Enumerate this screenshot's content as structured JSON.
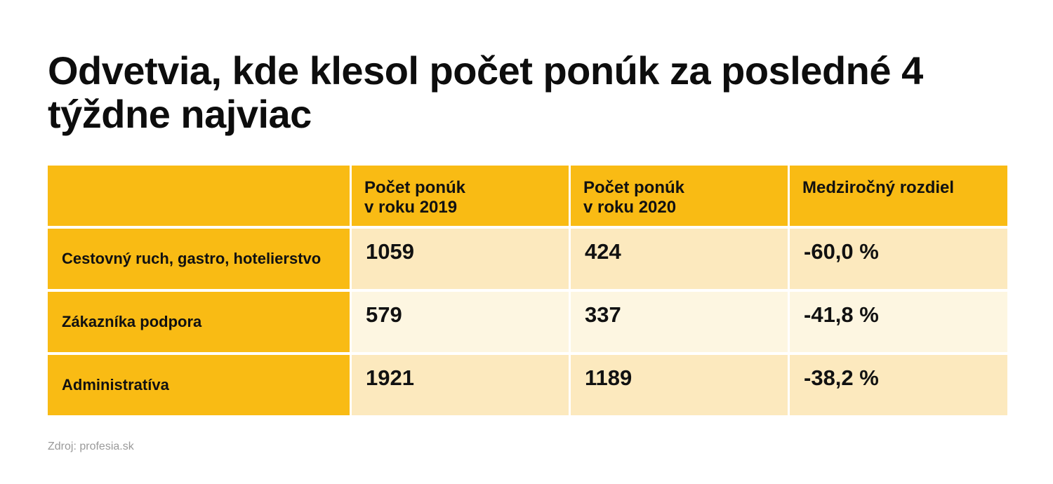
{
  "title": "Odvetvia, kde klesol počet ponúk za posledné 4 týždne najviac",
  "source": "Zdroj: profesia.sk",
  "colors": {
    "header": "#f9bb14",
    "row_dark": "#fce9be",
    "row_light": "#fdf6e1"
  },
  "chart_data": {
    "type": "table",
    "title": "Odvetvia, kde klesol počet ponúk za posledné 4 týždne najviac",
    "columns": [
      "",
      [
        "Počet ponúk",
        "v roku 2019"
      ],
      [
        "Počet ponúk",
        "v roku 2020"
      ],
      "Medziročný rozdiel"
    ],
    "rows": [
      {
        "label": "Cestovný ruch, gastro, hotelierstvo",
        "v2019": 1059,
        "v2020": 424,
        "diff": "-60,0 %"
      },
      {
        "label": "Zákazníka podpora",
        "v2019": 579,
        "v2020": 337,
        "diff": "-41,8 %"
      },
      {
        "label": "Administratíva",
        "v2019": 1921,
        "v2020": 1189,
        "diff": "-38,2 %"
      }
    ]
  }
}
